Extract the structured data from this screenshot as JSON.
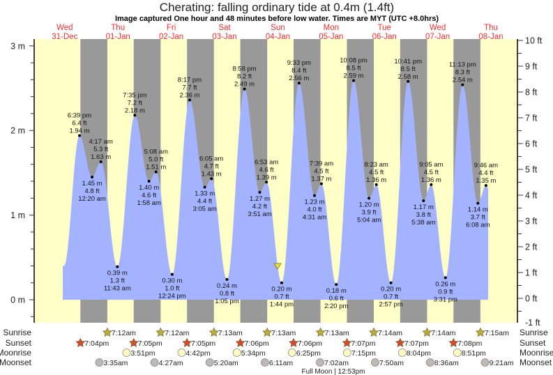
{
  "title": "Cherating: falling  ordinary tide at 0.4m (1.4ft)",
  "subtitle": "Image captured One hour and 48 minutes before low water. Times are MYT (UTC +8.0hrs)",
  "colors": {
    "day": "#ffffc8",
    "night": "#999999",
    "tide": "#a3b3ff",
    "date_label": "#ff2a2a",
    "sunrise": "#b8ac3a",
    "sunset": "#d44a2c",
    "moonrise": "#ffffc4",
    "moonset": "#bcbab4",
    "marker": "#f0e030"
  },
  "chart_data": {
    "type": "area",
    "title": "Cherating: falling  ordinary tide at 0.4m (1.4ft)",
    "days": [
      {
        "weekday": "Wed",
        "date": "31-Dec"
      },
      {
        "weekday": "Thu",
        "date": "01-Jan"
      },
      {
        "weekday": "Fri",
        "date": "02-Jan"
      },
      {
        "weekday": "Sat",
        "date": "03-Jan"
      },
      {
        "weekday": "Sun",
        "date": "04-Jan"
      },
      {
        "weekday": "Mon",
        "date": "05-Jan"
      },
      {
        "weekday": "Tue",
        "date": "06-Jan"
      },
      {
        "weekday": "Wed",
        "date": "07-Jan"
      },
      {
        "weekday": "Thu",
        "date": "08-Jan"
      }
    ],
    "y_left": {
      "unit": "m",
      "range": [
        -0.3,
        3.1
      ],
      "ticks": [
        "0 m",
        "1 m",
        "2 m",
        "3 m"
      ]
    },
    "y_right": {
      "unit": "ft",
      "range": [
        -1,
        10
      ],
      "ticks": [
        "-1 ft",
        "0 ft",
        "1 ft",
        "2 ft",
        "3 ft",
        "4 ft",
        "5 ft",
        "6 ft",
        "7 ft",
        "8 ft",
        "9 ft",
        "10 ft"
      ]
    },
    "current_level_m": 0.4,
    "extremes": [
      {
        "date": "31-Dec",
        "time": "6:39 pm",
        "type": "high",
        "m": 1.94,
        "ft": 6.4
      },
      {
        "date": "01-Jan",
        "time": "12:20 am",
        "type": "low",
        "m": 1.45,
        "ft": 4.8
      },
      {
        "date": "01-Jan",
        "time": "4:17 am",
        "type": "high",
        "m": 1.63,
        "ft": 5.3
      },
      {
        "date": "01-Jan",
        "time": "11:43 am",
        "type": "low",
        "m": 0.39,
        "ft": 1.3
      },
      {
        "date": "01-Jan",
        "time": "7:35 pm",
        "type": "high",
        "m": 2.18,
        "ft": 7.2
      },
      {
        "date": "02-Jan",
        "time": "1:58 am",
        "type": "low",
        "m": 1.4,
        "ft": 4.6
      },
      {
        "date": "02-Jan",
        "time": "5:08 am",
        "type": "high",
        "m": 1.51,
        "ft": 5.0
      },
      {
        "date": "02-Jan",
        "time": "12:24 pm",
        "type": "low",
        "m": 0.3,
        "ft": 1.0
      },
      {
        "date": "02-Jan",
        "time": "8:17 pm",
        "type": "high",
        "m": 2.36,
        "ft": 7.7
      },
      {
        "date": "03-Jan",
        "time": "3:05 am",
        "type": "low",
        "m": 1.33,
        "ft": 4.4
      },
      {
        "date": "03-Jan",
        "time": "6:05 am",
        "type": "high",
        "m": 1.43,
        "ft": 4.7
      },
      {
        "date": "03-Jan",
        "time": "1:05 pm",
        "type": "low",
        "m": 0.24,
        "ft": 0.8
      },
      {
        "date": "03-Jan",
        "time": "8:58 pm",
        "type": "high",
        "m": 2.49,
        "ft": 8.2
      },
      {
        "date": "04-Jan",
        "time": "3:51 am",
        "type": "low",
        "m": 1.27,
        "ft": 4.2
      },
      {
        "date": "04-Jan",
        "time": "6:53 am",
        "type": "high",
        "m": 1.39,
        "ft": 4.6
      },
      {
        "date": "04-Jan",
        "time": "1:44 pm",
        "type": "low",
        "m": 0.2,
        "ft": 0.7
      },
      {
        "date": "04-Jan",
        "time": "9:33 pm",
        "type": "high",
        "m": 2.56,
        "ft": 8.4
      },
      {
        "date": "05-Jan",
        "time": "4:31 am",
        "type": "low",
        "m": 1.23,
        "ft": 4.0
      },
      {
        "date": "05-Jan",
        "time": "7:39 am",
        "type": "high",
        "m": 1.37,
        "ft": 4.5
      },
      {
        "date": "05-Jan",
        "time": "2:20 pm",
        "type": "low",
        "m": 0.18,
        "ft": 0.6
      },
      {
        "date": "05-Jan",
        "time": "10:08 pm",
        "type": "high",
        "m": 2.59,
        "ft": 8.5
      },
      {
        "date": "06-Jan",
        "time": "5:04 am",
        "type": "low",
        "m": 1.2,
        "ft": 3.9
      },
      {
        "date": "06-Jan",
        "time": "8:23 am",
        "type": "high",
        "m": 1.36,
        "ft": 4.5
      },
      {
        "date": "06-Jan",
        "time": "2:57 pm",
        "type": "low",
        "m": 0.2,
        "ft": 0.7
      },
      {
        "date": "06-Jan",
        "time": "10:41 pm",
        "type": "high",
        "m": 2.58,
        "ft": 8.5
      },
      {
        "date": "07-Jan",
        "time": "5:38 am",
        "type": "low",
        "m": 1.17,
        "ft": 3.8
      },
      {
        "date": "07-Jan",
        "time": "9:05 am",
        "type": "high",
        "m": 1.36,
        "ft": 4.5
      },
      {
        "date": "07-Jan",
        "time": "3:31 pm",
        "type": "low",
        "m": 0.26,
        "ft": 0.9
      },
      {
        "date": "07-Jan",
        "time": "11:13 pm",
        "type": "high",
        "m": 2.54,
        "ft": 8.3
      },
      {
        "date": "08-Jan",
        "time": "6:08 am",
        "type": "low",
        "m": 1.14,
        "ft": 3.7
      },
      {
        "date": "08-Jan",
        "time": "9:46 am",
        "type": "high",
        "m": 1.35,
        "ft": 4.4
      }
    ]
  },
  "events": {
    "labels": {
      "sunrise": "Sunrise",
      "sunset": "Sunset",
      "moonrise": "Moonrise",
      "moonset": "Moonset"
    },
    "sunrise": [
      {
        "date": "01-Jan",
        "time": "7:12am"
      },
      {
        "date": "02-Jan",
        "time": "7:12am"
      },
      {
        "date": "03-Jan",
        "time": "7:13am"
      },
      {
        "date": "04-Jan",
        "time": "7:13am"
      },
      {
        "date": "05-Jan",
        "time": "7:13am"
      },
      {
        "date": "06-Jan",
        "time": "7:14am"
      },
      {
        "date": "07-Jan",
        "time": "7:14am"
      },
      {
        "date": "08-Jan",
        "time": "7:15am"
      }
    ],
    "sunset": [
      {
        "date": "31-Dec",
        "time": "7:04pm"
      },
      {
        "date": "01-Jan",
        "time": "7:05pm"
      },
      {
        "date": "02-Jan",
        "time": "7:05pm"
      },
      {
        "date": "03-Jan",
        "time": "7:06pm"
      },
      {
        "date": "04-Jan",
        "time": "7:06pm"
      },
      {
        "date": "05-Jan",
        "time": "7:07pm"
      },
      {
        "date": "06-Jan",
        "time": "7:07pm"
      },
      {
        "date": "07-Jan",
        "time": "7:08pm"
      }
    ],
    "moonrise": [
      {
        "date": "01-Jan",
        "time": "3:51pm"
      },
      {
        "date": "02-Jan",
        "time": "4:42pm"
      },
      {
        "date": "03-Jan",
        "time": "5:34pm"
      },
      {
        "date": "04-Jan",
        "time": "6:25pm"
      },
      {
        "date": "05-Jan",
        "time": "7:15pm"
      },
      {
        "date": "06-Jan",
        "time": "8:04pm"
      },
      {
        "date": "07-Jan",
        "time": "8:51pm"
      }
    ],
    "moonset": [
      {
        "date": "01-Jan",
        "time": "3:35am"
      },
      {
        "date": "02-Jan",
        "time": "4:27am"
      },
      {
        "date": "03-Jan",
        "time": "5:20am"
      },
      {
        "date": "04-Jan",
        "time": "6:11am"
      },
      {
        "date": "05-Jan",
        "time": "7:02am"
      },
      {
        "date": "06-Jan",
        "time": "7:50am"
      },
      {
        "date": "07-Jan",
        "time": "8:36am"
      },
      {
        "date": "08-Jan",
        "time": "9:21am"
      }
    ],
    "full_moon": "Full Moon | 12:53pm"
  }
}
